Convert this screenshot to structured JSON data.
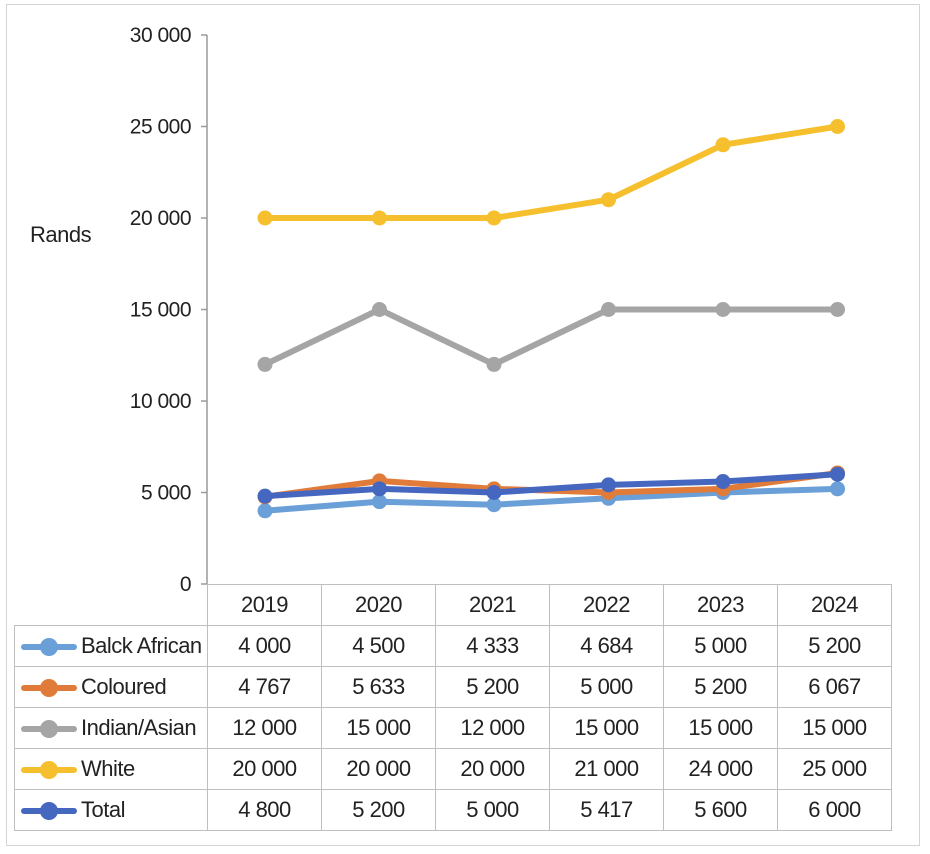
{
  "chart_data": {
    "type": "line",
    "ylabel": "Rands",
    "ylim": [
      0,
      30000
    ],
    "y_ticks": [
      "0",
      "5 000",
      "10 000",
      "15 000",
      "20 000",
      "25 000",
      "30 000"
    ],
    "categories": [
      "2019",
      "2020",
      "2021",
      "2022",
      "2023",
      "2024"
    ],
    "legend_position": "table-below",
    "series": [
      {
        "name": "Balck African",
        "color": "#6a9fd8",
        "values": [
          4000,
          4500,
          4333,
          4684,
          5000,
          5200
        ],
        "labels": [
          "4 000",
          "4 500",
          "4 333",
          "4 684",
          "5 000",
          "5 200"
        ]
      },
      {
        "name": "Coloured",
        "color": "#e07b39",
        "values": [
          4767,
          5633,
          5200,
          5000,
          5200,
          6067
        ],
        "labels": [
          "4 767",
          "5 633",
          "5 200",
          "5 000",
          "5 200",
          "6 067"
        ]
      },
      {
        "name": "Indian/Asian",
        "color": "#a5a5a5",
        "values": [
          12000,
          15000,
          12000,
          15000,
          15000,
          15000
        ],
        "labels": [
          "12 000",
          "15 000",
          "12 000",
          "15 000",
          "15 000",
          "15 000"
        ]
      },
      {
        "name": "White",
        "color": "#f5bf2e",
        "values": [
          20000,
          20000,
          20000,
          21000,
          24000,
          25000
        ],
        "labels": [
          "20 000",
          "20 000",
          "20 000",
          "21 000",
          "24 000",
          "25 000"
        ]
      },
      {
        "name": "Total",
        "color": "#4567c0",
        "values": [
          4800,
          5200,
          5000,
          5417,
          5600,
          6000
        ],
        "labels": [
          "4 800",
          "5 200",
          "5 000",
          "5 417",
          "5 600",
          "6 000"
        ]
      }
    ]
  }
}
